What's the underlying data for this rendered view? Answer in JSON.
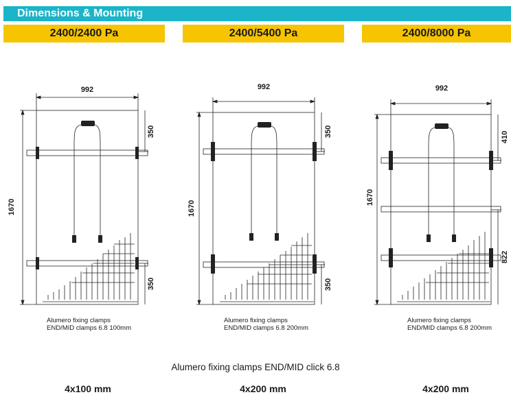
{
  "header": {
    "title": "Dimensions & Mounting"
  },
  "load_bands": [
    {
      "label": "2400/2400 Pa"
    },
    {
      "label": "2400/5400 Pa"
    },
    {
      "label": "2400/8000 Pa"
    }
  ],
  "panels": [
    {
      "width_label": "992",
      "height_label": "1670",
      "top_offset_label": "350",
      "bottom_offset_label": "350",
      "caption_line1": "Alumero fixing clamps",
      "caption_line2": "END/MID clamps 6.8 100mm"
    },
    {
      "width_label": "992",
      "height_label": "1670",
      "top_offset_label": "350",
      "bottom_offset_label": "350",
      "caption_line1": "Alumero fixing clamps",
      "caption_line2": "END/MID clamps 6.8 200mm"
    },
    {
      "width_label": "992",
      "height_label": "1670",
      "top_offset_label": "410",
      "bottom_offset_label": "822",
      "caption_line1": "Alumero fixing clamps",
      "caption_line2": "END/MID clamps 6.8 200mm"
    }
  ],
  "footer": {
    "note": "Alumero fixing clamps END/MID click 6.8",
    "sizes": [
      "4x100 mm",
      "4x200 mm",
      "4x200 mm"
    ]
  },
  "colors": {
    "header": "#1bb4c8",
    "band": "#f6c400",
    "line": "#222222"
  }
}
